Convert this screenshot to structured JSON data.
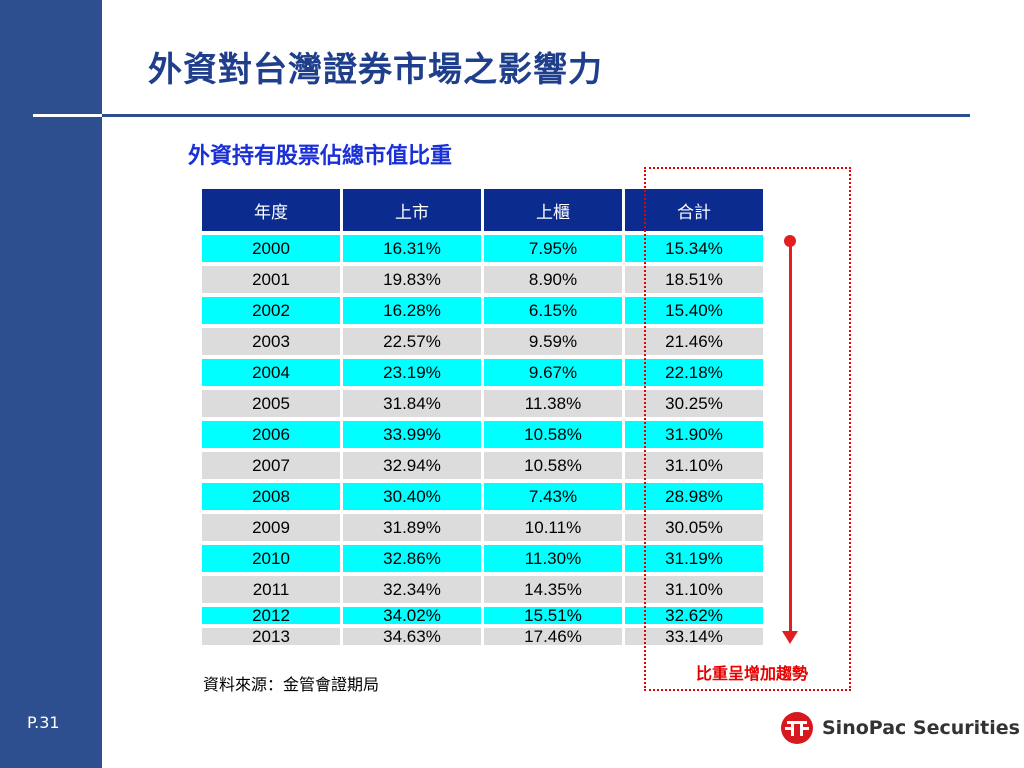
{
  "slide": {
    "title": "外資對台灣證券市場之影響力",
    "subtitle": "外資持有股票佔總市值比重",
    "page_number": "P.31"
  },
  "table": {
    "headers": [
      "年度",
      "上市",
      "上櫃",
      "合計"
    ],
    "rows": [
      [
        "2000",
        "16.31%",
        "7.95%",
        "15.34%"
      ],
      [
        "2001",
        "19.83%",
        "8.90%",
        "18.51%"
      ],
      [
        "2002",
        "16.28%",
        "6.15%",
        "15.40%"
      ],
      [
        "2003",
        "22.57%",
        "9.59%",
        "21.46%"
      ],
      [
        "2004",
        "23.19%",
        "9.67%",
        "22.18%"
      ],
      [
        "2005",
        "31.84%",
        "11.38%",
        "30.25%"
      ],
      [
        "2006",
        "33.99%",
        "10.58%",
        "31.90%"
      ],
      [
        "2007",
        "32.94%",
        "10.58%",
        "31.10%"
      ],
      [
        "2008",
        "30.40%",
        "7.43%",
        "28.98%"
      ],
      [
        "2009",
        "31.89%",
        "10.11%",
        "30.05%"
      ],
      [
        "2010",
        "32.86%",
        "11.30%",
        "31.19%"
      ],
      [
        "2011",
        "32.34%",
        "14.35%",
        "31.10%"
      ],
      [
        "2012",
        "34.02%",
        "15.51%",
        "32.62%"
      ],
      [
        "2013",
        "34.63%",
        "17.46%",
        "33.14%"
      ]
    ]
  },
  "annotation": {
    "trend_note": "比重呈增加趨勢"
  },
  "footer": {
    "source": "資料來源：金管會證期局",
    "logo_text": "SinoPac Securities"
  },
  "colors": {
    "sidebar": "#2e4f8f",
    "title": "#1f3f8c",
    "header_cell": "#0c2b8f",
    "row_cyan": "#00ffff",
    "row_grey": "#dcdcdc",
    "highlight": "#e60000"
  }
}
